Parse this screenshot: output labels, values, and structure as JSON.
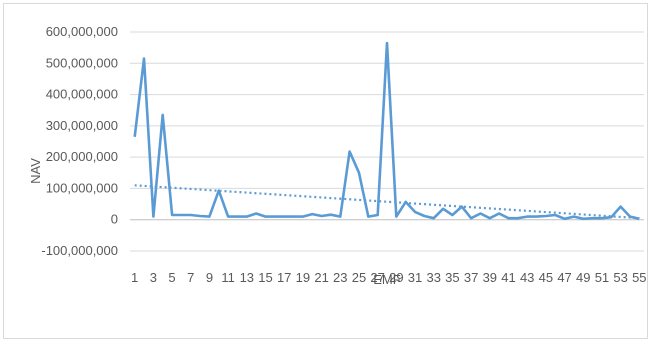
{
  "chart_data": {
    "type": "line",
    "xlabel": "EMF",
    "ylabel": "NAV",
    "ylim": [
      -100000000,
      600000000
    ],
    "ytick_values": [
      600000000,
      500000000,
      400000000,
      300000000,
      200000000,
      100000000,
      0,
      -100000000
    ],
    "ytick_labels": [
      "600,000,000",
      "500,000,000",
      "400,000,000",
      "300,000,000",
      "200,000,000",
      "100,000,000",
      "0",
      "-100,000,000"
    ],
    "x": [
      1,
      2,
      3,
      4,
      5,
      6,
      7,
      8,
      9,
      10,
      11,
      12,
      13,
      14,
      15,
      16,
      17,
      18,
      19,
      20,
      21,
      22,
      23,
      24,
      25,
      26,
      27,
      28,
      29,
      30,
      31,
      32,
      33,
      34,
      35,
      36,
      37,
      38,
      39,
      40,
      41,
      42,
      43,
      44,
      45,
      46,
      47,
      48,
      49,
      50,
      51,
      52,
      53,
      54,
      55
    ],
    "xtick_labels": [
      "1",
      "3",
      "5",
      "7",
      "9",
      "11",
      "13",
      "15",
      "17",
      "19",
      "21",
      "23",
      "25",
      "27",
      "29",
      "31",
      "33",
      "35",
      "37",
      "39",
      "41",
      "43",
      "45",
      "47",
      "49",
      "51",
      "53",
      "55"
    ],
    "series": [
      {
        "values": [
          265000000,
          515000000,
          10000000,
          335000000,
          15000000,
          15000000,
          15000000,
          12000000,
          10000000,
          93000000,
          10000000,
          10000000,
          10000000,
          20000000,
          10000000,
          10000000,
          10000000,
          10000000,
          10000000,
          18000000,
          12000000,
          16000000,
          10000000,
          218000000,
          150000000,
          10000000,
          15000000,
          565000000,
          10000000,
          57000000,
          25000000,
          12000000,
          5000000,
          35000000,
          15000000,
          42000000,
          5000000,
          20000000,
          5000000,
          20000000,
          5000000,
          5000000,
          10000000,
          10000000,
          12000000,
          15000000,
          3000000,
          10000000,
          3000000,
          5000000,
          5000000,
          8000000,
          42000000,
          10000000,
          3000000
        ]
      }
    ],
    "trendline": {
      "type": "linear",
      "style": "dotted",
      "start": 110000000,
      "end": 5000000
    },
    "grid": true,
    "legend": "none",
    "colors": {
      "line": "#5b9bd5",
      "grid": "#d9d9d9",
      "text": "#595959"
    }
  }
}
